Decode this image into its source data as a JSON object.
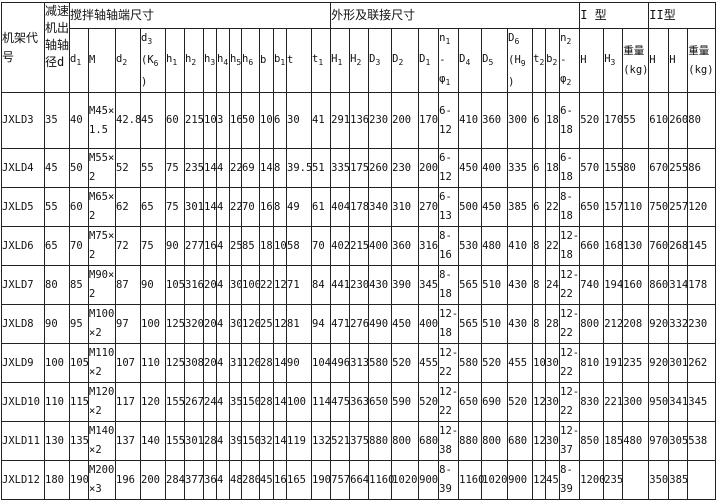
{
  "group_headers": {
    "frame": "机架代号",
    "reducer_shaft": "减速机出轴轴径d",
    "shaft_end": "搅拌轴轴端尺寸",
    "outline": "外形及联接尺寸",
    "type1": "I 型",
    "type2": "II型"
  },
  "columns": [
    [
      {
        "text": "d",
        "sub": "1"
      }
    ],
    [
      {
        "text": "M"
      }
    ],
    [
      {
        "text": "d",
        "sub": "2"
      }
    ],
    [
      {
        "text": "d",
        "sub": "3"
      },
      {
        "text": "(K",
        "sub": "6"
      },
      {
        "text": ")"
      }
    ],
    [
      {
        "text": "h",
        "sub": "1"
      }
    ],
    [
      {
        "text": "h",
        "sub": "2"
      }
    ],
    [
      {
        "text": "h",
        "sub": "3"
      }
    ],
    [
      {
        "text": "h",
        "sub": "4"
      }
    ],
    [
      {
        "text": "h",
        "sub": "5"
      }
    ],
    [
      {
        "text": "h",
        "sub": "6"
      }
    ],
    [
      {
        "text": "b"
      }
    ],
    [
      {
        "text": "b",
        "sub": "1"
      }
    ],
    [
      {
        "text": "t"
      }
    ],
    [
      {
        "text": "t",
        "sub": "1"
      }
    ],
    [
      {
        "text": "H",
        "sub": "1"
      }
    ],
    [
      {
        "text": "H",
        "sub": "2"
      }
    ],
    [
      {
        "text": "D",
        "sub": "3"
      }
    ],
    [
      {
        "text": "D",
        "sub": "2"
      }
    ],
    [
      {
        "text": "D",
        "sub": "1"
      }
    ],
    [
      {
        "text": "n",
        "sub": "1"
      },
      {
        "text": "- φ",
        "sub": "1"
      }
    ],
    [
      {
        "text": "D",
        "sub": "4"
      }
    ],
    [
      {
        "text": "D",
        "sub": "5"
      }
    ],
    [
      {
        "text": "D",
        "sub": "6"
      },
      {
        "text": "(H",
        "sub": "9"
      },
      {
        "text": ")"
      }
    ],
    [
      {
        "text": "t",
        "sub": "2"
      }
    ],
    [
      {
        "text": "b",
        "sub": "2"
      }
    ],
    [
      {
        "text": "n",
        "sub": "2"
      },
      {
        "text": "- φ",
        "sub": "2"
      }
    ],
    [
      {
        "text": "H"
      }
    ],
    [
      {
        "text": "H",
        "sub": "3"
      }
    ],
    [
      {
        "text": "重量 (kg)"
      }
    ],
    [
      {
        "text": "H"
      }
    ],
    [
      {
        "text": "H"
      }
    ],
    [
      {
        "text": "重量 (kg)"
      }
    ]
  ],
  "rows": [
    [
      "JXLD3",
      "35",
      "40",
      "M45×1.5",
      "42.8",
      "45",
      "60",
      "215",
      "10",
      "3",
      "16",
      "50",
      "10",
      "6",
      "30",
      "41",
      "291",
      "136",
      "230",
      "200",
      "170",
      "6-12",
      "410",
      "360",
      "300",
      "6",
      "18",
      "6-18",
      "520",
      "170",
      "55",
      "610",
      "260",
      "80"
    ],
    [
      "JXLD4",
      "45",
      "50",
      "M55×2",
      "52",
      "55",
      "75",
      "235",
      "14",
      "4",
      "22",
      "69",
      "14",
      "8",
      "39.5",
      "51",
      "335",
      "175",
      "260",
      "230",
      "200",
      "6-12",
      "450",
      "400",
      "335",
      "6",
      "18",
      "6-18",
      "570",
      "155",
      "80",
      "670",
      "255",
      "86"
    ],
    [
      "JXLD5",
      "55",
      "60",
      "M65×2",
      "62",
      "65",
      "75",
      "301",
      "14",
      "4",
      "22",
      "70",
      "16",
      "8",
      "49",
      "61",
      "404",
      "178",
      "340",
      "310",
      "270",
      "6-13",
      "500",
      "450",
      "385",
      "6",
      "22",
      "8-18",
      "650",
      "157",
      "110",
      "750",
      "257",
      "120"
    ],
    [
      "JXLD6",
      "65",
      "70",
      "M75×2",
      "72",
      "75",
      "90",
      "277",
      "16",
      "4",
      "25",
      "85",
      "18",
      "10",
      "58",
      "70",
      "402",
      "215",
      "400",
      "360",
      "316",
      "8-16",
      "530",
      "480",
      "410",
      "8",
      "22",
      "12-18",
      "660",
      "168",
      "130",
      "760",
      "268",
      "145"
    ],
    [
      "JXLD7",
      "80",
      "85",
      "M90×2",
      "87",
      "90",
      "105",
      "316",
      "20",
      "4",
      "30",
      "100",
      "22",
      "12",
      "71",
      "84",
      "441",
      "230",
      "430",
      "390",
      "345",
      "8-18",
      "565",
      "510",
      "430",
      "8",
      "24",
      "12-22",
      "740",
      "194",
      "160",
      "860",
      "314",
      "178"
    ],
    [
      "JXLD8",
      "90",
      "95",
      "M100×2",
      "97",
      "100",
      "125",
      "320",
      "20",
      "4",
      "30",
      "120",
      "25",
      "12",
      "81",
      "94",
      "471",
      "276",
      "490",
      "450",
      "400",
      "12-18",
      "565",
      "510",
      "430",
      "8",
      "28",
      "12-22",
      "800",
      "212",
      "208",
      "920",
      "332",
      "230"
    ],
    [
      "JXLD9",
      "100",
      "105",
      "M110×2",
      "107",
      "110",
      "125",
      "308",
      "20",
      "4",
      "31",
      "120",
      "28",
      "14",
      "90",
      "104",
      "496",
      "313",
      "580",
      "520",
      "455",
      "12-22",
      "580",
      "520",
      "455",
      "10",
      "30",
      "12-22",
      "810",
      "191",
      "235",
      "920",
      "301",
      "262"
    ],
    [
      "JXLD10",
      "110",
      "115",
      "M120×2",
      "117",
      "120",
      "155",
      "267",
      "24",
      "4",
      "35",
      "150",
      "28",
      "14",
      "100",
      "114",
      "475",
      "363",
      "650",
      "590",
      "520",
      "12-22",
      "650",
      "690",
      "520",
      "12",
      "30",
      "12-22",
      "830",
      "221",
      "300",
      "950",
      "341",
      "345"
    ],
    [
      "JXLD11",
      "130",
      "135",
      "M140×2",
      "137",
      "140",
      "155",
      "301",
      "28",
      "4",
      "39",
      "150",
      "32",
      "14",
      "119",
      "132",
      "521",
      "375",
      "880",
      "800",
      "680",
      "12-38",
      "880",
      "800",
      "680",
      "12",
      "30",
      "12-37",
      "850",
      "185",
      "480",
      "970",
      "305",
      "538"
    ],
    [
      "JXLD12",
      "180",
      "190",
      "M200×3",
      "196",
      "200",
      "284",
      "377",
      "36",
      "4",
      "48",
      "280",
      "45",
      "16",
      "165",
      "190",
      "757",
      "664",
      "1160",
      "1020",
      "900",
      "8-39",
      "1160",
      "1020",
      "900",
      "12",
      "45",
      "8-39",
      "1200",
      "235",
      "",
      "350",
      "385",
      ""
    ]
  ]
}
